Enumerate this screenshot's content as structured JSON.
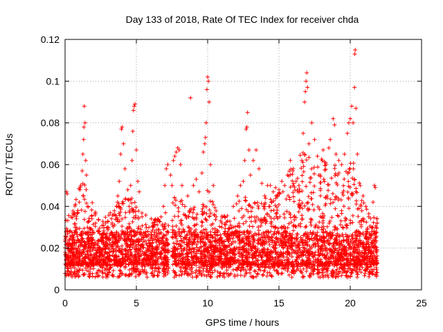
{
  "chart_data": {
    "type": "scatter",
    "title": "Day 133 of 2018, Rate Of TEC Index for receiver chda",
    "xlabel": "GPS time / hours",
    "ylabel": "ROTI / TECUs",
    "xlim": [
      0,
      25
    ],
    "ylim": [
      0,
      0.12
    ],
    "xticks": [
      0,
      5,
      10,
      15,
      20,
      25
    ],
    "xtick_labels": [
      "0",
      "5",
      "10",
      "15",
      "20",
      "25"
    ],
    "yticks": [
      0,
      0.02,
      0.04,
      0.06,
      0.08,
      0.1,
      0.12
    ],
    "ytick_labels": [
      "0",
      "0.02",
      "0.04",
      "0.06",
      "0.08",
      "0.1",
      "0.12"
    ],
    "grid": "dotted",
    "legend": "none",
    "marker": "+",
    "series": [
      {
        "color": "#ff0000",
        "points": [
          [
            0.1,
            0.047
          ],
          [
            0.15,
            0.046
          ],
          [
            0.2,
            0.02
          ],
          [
            0.3,
            0.018
          ],
          [
            0.4,
            0.013
          ],
          [
            0.5,
            0.022
          ],
          [
            0.6,
            0.025
          ],
          [
            0.7,
            0.03
          ],
          [
            0.8,
            0.034
          ],
          [
            0.9,
            0.038
          ],
          [
            1.0,
            0.042
          ],
          [
            1.05,
            0.048
          ],
          [
            1.1,
            0.05
          ],
          [
            1.2,
            0.057
          ],
          [
            1.25,
            0.065
          ],
          [
            1.3,
            0.072
          ],
          [
            1.32,
            0.078
          ],
          [
            1.35,
            0.088
          ],
          [
            1.4,
            0.08
          ],
          [
            1.45,
            0.062
          ],
          [
            1.5,
            0.055
          ],
          [
            1.6,
            0.04
          ],
          [
            1.7,
            0.033
          ],
          [
            1.9,
            0.025
          ],
          [
            2.1,
            0.02
          ],
          [
            2.4,
            0.028
          ],
          [
            2.7,
            0.031
          ],
          [
            3.0,
            0.03
          ],
          [
            3.3,
            0.032
          ],
          [
            3.5,
            0.036
          ],
          [
            3.7,
            0.045
          ],
          [
            3.8,
            0.052
          ],
          [
            3.9,
            0.065
          ],
          [
            3.95,
            0.077
          ],
          [
            4.0,
            0.078
          ],
          [
            4.1,
            0.07
          ],
          [
            4.2,
            0.058
          ],
          [
            4.4,
            0.048
          ],
          [
            4.5,
            0.04
          ],
          [
            4.6,
            0.05
          ],
          [
            4.7,
            0.062
          ],
          [
            4.75,
            0.076
          ],
          [
            4.8,
            0.086
          ],
          [
            4.85,
            0.088
          ],
          [
            4.9,
            0.089
          ],
          [
            5.0,
            0.067
          ],
          [
            5.1,
            0.052
          ],
          [
            5.2,
            0.047
          ],
          [
            5.4,
            0.035
          ],
          [
            5.8,
            0.028
          ],
          [
            6.2,
            0.03
          ],
          [
            6.6,
            0.033
          ],
          [
            6.9,
            0.04
          ],
          [
            7.0,
            0.05
          ],
          [
            7.1,
            0.058
          ],
          [
            7.2,
            0.06
          ],
          [
            7.4,
            0.055
          ],
          [
            7.5,
            0.05
          ],
          [
            7.6,
            0.062
          ],
          [
            7.7,
            0.064
          ],
          [
            7.8,
            0.066
          ],
          [
            7.9,
            0.068
          ],
          [
            8.0,
            0.067
          ],
          [
            8.1,
            0.06
          ],
          [
            8.2,
            0.05
          ],
          [
            8.4,
            0.04
          ],
          [
            8.6,
            0.045
          ],
          [
            8.8,
            0.092
          ],
          [
            9.0,
            0.05
          ],
          [
            9.2,
            0.053
          ],
          [
            9.4,
            0.047
          ],
          [
            9.6,
            0.056
          ],
          [
            9.7,
            0.066
          ],
          [
            9.8,
            0.07
          ],
          [
            9.85,
            0.073
          ],
          [
            9.9,
            0.08
          ],
          [
            9.95,
            0.096
          ],
          [
            10.0,
            0.102
          ],
          [
            10.05,
            0.1
          ],
          [
            10.1,
            0.09
          ],
          [
            10.2,
            0.06
          ],
          [
            10.4,
            0.05
          ],
          [
            10.6,
            0.035
          ],
          [
            11.0,
            0.03
          ],
          [
            11.4,
            0.033
          ],
          [
            11.8,
            0.04
          ],
          [
            12.1,
            0.045
          ],
          [
            12.3,
            0.05
          ],
          [
            12.5,
            0.052
          ],
          [
            12.6,
            0.062
          ],
          [
            12.7,
            0.077
          ],
          [
            12.75,
            0.078
          ],
          [
            12.8,
            0.085
          ],
          [
            12.9,
            0.067
          ],
          [
            13.0,
            0.055
          ],
          [
            13.2,
            0.062
          ],
          [
            13.4,
            0.067
          ],
          [
            13.6,
            0.058
          ],
          [
            13.8,
            0.051
          ],
          [
            14.0,
            0.045
          ],
          [
            14.2,
            0.05
          ],
          [
            14.4,
            0.05
          ],
          [
            14.6,
            0.047
          ],
          [
            14.8,
            0.045
          ],
          [
            15.0,
            0.048
          ],
          [
            15.2,
            0.052
          ],
          [
            15.4,
            0.05
          ],
          [
            15.6,
            0.055
          ],
          [
            15.8,
            0.062
          ],
          [
            16.0,
            0.058
          ],
          [
            16.2,
            0.052
          ],
          [
            16.4,
            0.05
          ],
          [
            16.6,
            0.062
          ],
          [
            16.7,
            0.075
          ],
          [
            16.8,
            0.09
          ],
          [
            16.85,
            0.095
          ],
          [
            16.9,
            0.1
          ],
          [
            16.95,
            0.104
          ],
          [
            17.0,
            0.097
          ],
          [
            17.1,
            0.07
          ],
          [
            17.3,
            0.08
          ],
          [
            17.5,
            0.072
          ],
          [
            17.7,
            0.064
          ],
          [
            17.9,
            0.055
          ],
          [
            18.1,
            0.067
          ],
          [
            18.3,
            0.06
          ],
          [
            18.5,
            0.068
          ],
          [
            18.6,
            0.072
          ],
          [
            18.8,
            0.082
          ],
          [
            18.9,
            0.079
          ],
          [
            19.0,
            0.065
          ],
          [
            19.2,
            0.062
          ],
          [
            19.4,
            0.06
          ],
          [
            19.6,
            0.065
          ],
          [
            19.8,
            0.075
          ],
          [
            19.9,
            0.08
          ],
          [
            20.0,
            0.082
          ],
          [
            20.1,
            0.088
          ],
          [
            20.2,
            0.08
          ],
          [
            20.3,
            0.097
          ],
          [
            20.32,
            0.113
          ],
          [
            20.35,
            0.115
          ],
          [
            20.4,
            0.087
          ],
          [
            20.5,
            0.065
          ],
          [
            20.7,
            0.05
          ],
          [
            20.9,
            0.045
          ],
          [
            21.1,
            0.04
          ],
          [
            21.3,
            0.035
          ],
          [
            21.5,
            0.03
          ],
          [
            21.6,
            0.042
          ],
          [
            21.7,
            0.05
          ],
          [
            21.75,
            0.049
          ],
          [
            21.8,
            0.025
          ],
          [
            21.85,
            0.015
          ]
        ]
      }
    ]
  }
}
